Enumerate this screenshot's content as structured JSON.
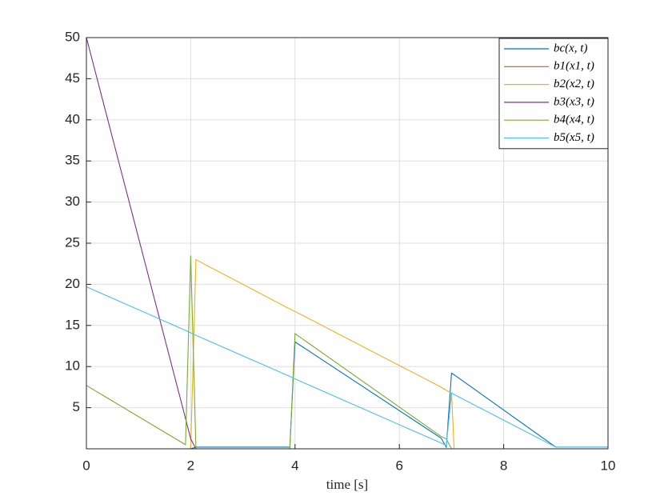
{
  "chart_data": {
    "type": "line",
    "x_label": "time [s]",
    "x": [
      0,
      1.9,
      2.0,
      2.1,
      3.9,
      4.0,
      6.8,
      6.9,
      7.0,
      7.05,
      9.0,
      10
    ],
    "series": [
      {
        "name": "bc(x, t)",
        "color": "#0072bd",
        "values": [
          0,
          0,
          0,
          0.2,
          0.2,
          13,
          1.3,
          0.2,
          9.2,
          9.0,
          0.2,
          0.2
        ]
      },
      {
        "name": "b1(x1, t)",
        "color": "#d95319",
        "values": [
          0,
          0,
          0,
          0,
          0,
          0,
          0,
          0,
          0,
          0,
          0,
          0
        ]
      },
      {
        "name": "b2(x2, t)",
        "color": "#edb120",
        "values": [
          0,
          0,
          0,
          23,
          17,
          16.7,
          7.5,
          7.1,
          6.8,
          0,
          0,
          0
        ]
      },
      {
        "name": "b3(x3, t)",
        "color": "#7e2f8e",
        "values": [
          50,
          3.7,
          1.2,
          0,
          0,
          0,
          0,
          0,
          0,
          0,
          0,
          0
        ]
      },
      {
        "name": "b4(x4, t)",
        "color": "#77ac30",
        "values": [
          7.7,
          0.5,
          23.5,
          0,
          0,
          14,
          1.5,
          1.2,
          0,
          0,
          0,
          0
        ]
      },
      {
        "name": "b5(x5, t)",
        "color": "#4dbeee",
        "values": [
          19.7,
          14.4,
          14.1,
          13.8,
          8.8,
          8.5,
          0.7,
          0.4,
          6.8,
          6.6,
          0.2,
          0.2
        ]
      }
    ],
    "xlim": [
      0,
      10
    ],
    "xticks": [
      0,
      2,
      4,
      6,
      8,
      10
    ],
    "ylim": [
      0,
      50
    ],
    "yticks": [
      5,
      10,
      15,
      20,
      25,
      30,
      35,
      40,
      45,
      50
    ],
    "grid": true,
    "legend_position": "top-right"
  }
}
